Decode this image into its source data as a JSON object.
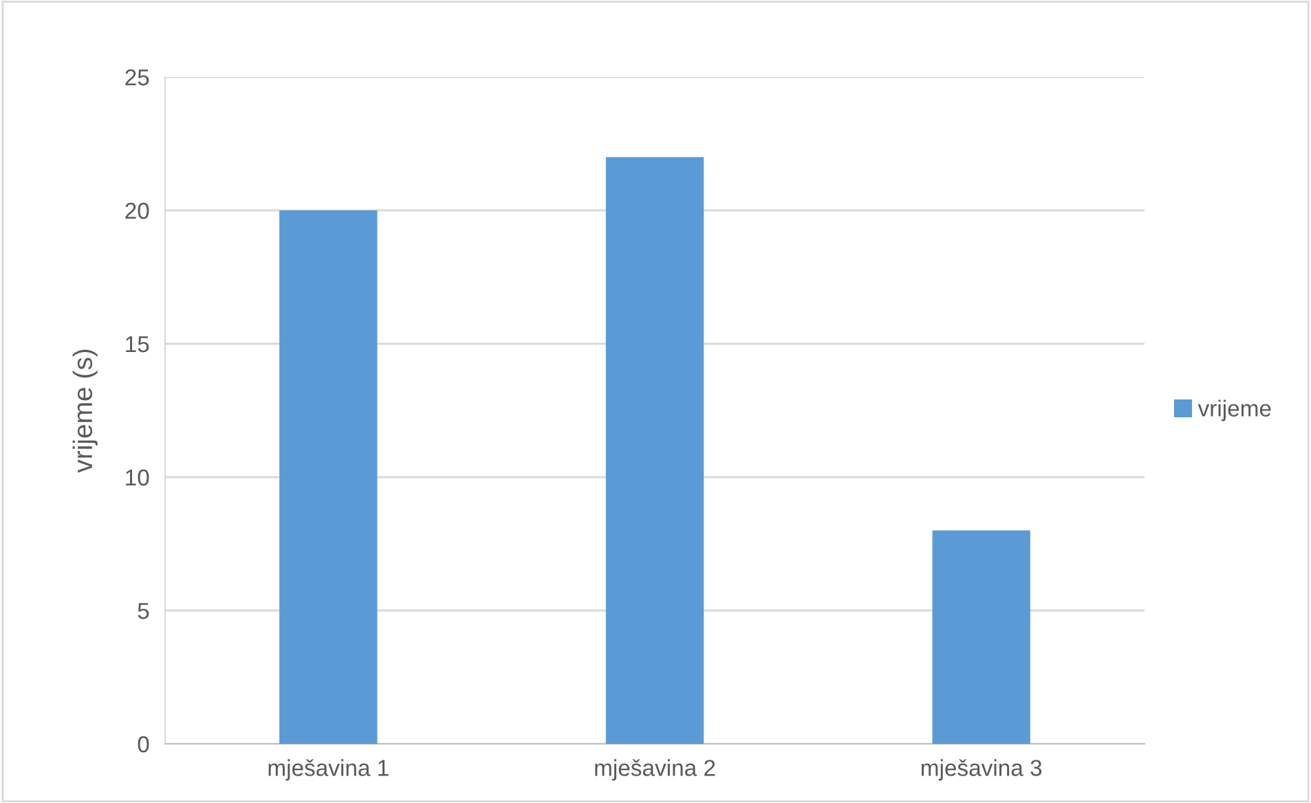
{
  "chart_data": {
    "type": "bar",
    "ylabel": "vrijeme (s)",
    "categories": [
      "mješavina 1",
      "mješavina 2",
      "mješavina 3"
    ],
    "series": [
      {
        "name": "vrijeme",
        "color": "#5b9bd5",
        "values": [
          20,
          22,
          8
        ]
      }
    ],
    "ylim": [
      0,
      25
    ],
    "yticks": [
      0,
      5,
      10,
      15,
      20,
      25
    ],
    "grid": "y",
    "legend": "right"
  }
}
